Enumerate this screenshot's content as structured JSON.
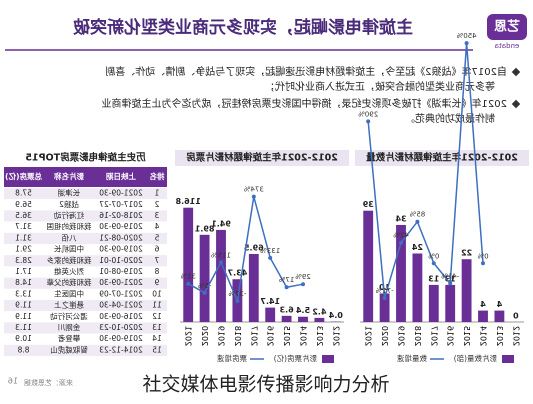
{
  "header": {
    "title": "主旋律电影崛起，实现多元商业类型化新突破",
    "logo": "艺恩",
    "logo_sub": "endata"
  },
  "bullets": [
    [
      "自2017年《战狼2》起至今，主旋律题材电影迅速崛起，实现了与战争、剧情、动作、喜剧",
      "等多元商业类型的融合突破，正式进入商业化时代；"
    ],
    [
      "2021年《长津湖》打破多项影史纪录，摘得中国影史票房榜桂冠，成为迄今为止主旋律商业",
      "制作最成功的典范。"
    ]
  ],
  "chart_data": [
    {
      "type": "bar",
      "title": "2012-2021年主旋律题材影片数量",
      "categories": [
        "2012",
        "2013",
        "2014",
        "2015",
        "2016",
        "2017",
        "2018",
        "2019",
        "2020",
        "2021"
      ],
      "ylim": [
        0,
        48
      ],
      "y2lim": [
        -120,
        160
      ],
      "series": [
        {
          "name": "影片数量(部)",
          "color": "#6a2f96",
          "values": [
            0,
            4,
            4,
            22,
            13,
            13,
            24,
            34,
            10,
            39
          ]
        },
        {
          "name": "数量增速",
          "color": "#3e6fc0",
          "axis": "y2",
          "values": [
            null,
            null,
            0,
            450,
            -41,
            0,
            85,
            42,
            -71,
            290
          ],
          "value_labels": [
            null,
            null,
            "0%",
            "450%",
            "-41%",
            "0%",
            "85%",
            "42%",
            "-71%",
            "290%"
          ]
        }
      ]
    },
    {
      "type": "bar",
      "title": "2012-2021年主旋律题材影片票房",
      "categories": [
        "2012",
        "2013",
        "2014",
        "2015",
        "2016",
        "2017",
        "2018",
        "2019",
        "2020",
        "2021"
      ],
      "ylim": [
        0,
        140
      ],
      "y2lim": [
        -120,
        420
      ],
      "series": [
        {
          "name": "影片票房(亿)",
          "color": "#6a2f96",
          "values": [
            0.4,
            4.2,
            5.4,
            6.3,
            14.7,
            69.5,
            43.7,
            94.1,
            89.1,
            116.8
          ]
        },
        {
          "name": "票房增速",
          "color": "#3e6fc0",
          "axis": "y2",
          "values": [
            null,
            null,
            29,
            17,
            133,
            374,
            -37,
            115,
            -5,
            31
          ],
          "value_labels": [
            null,
            null,
            "29%",
            "17%",
            "133%",
            "374%",
            "-37%",
            "115%",
            "-5%",
            "31%"
          ]
        }
      ]
    }
  ],
  "table": {
    "title": "历史主旋律电影票房TOP15",
    "columns": [
      "排名",
      "上映日期",
      "影片名称",
      "总票房(亿)"
    ],
    "rows": [
      [
        "1",
        "2021-09-30",
        "长津湖",
        "57.8"
      ],
      [
        "2",
        "2017-07-27",
        "战狼2",
        "56.9"
      ],
      [
        "3",
        "2018-02-16",
        "红海行动",
        "36.5"
      ],
      [
        "4",
        "2019-09-30",
        "我和我的祖国",
        "31.7"
      ],
      [
        "5",
        "2020-08-21",
        "八佰",
        "31.1"
      ],
      [
        "6",
        "2019-09-30",
        "中国机长",
        "29.1"
      ],
      [
        "7",
        "2020-10-01",
        "我和我的家乡",
        "28.3"
      ],
      [
        "8",
        "2019-08-01",
        "烈火英雄",
        "17.1"
      ],
      [
        "9",
        "2021-09-30",
        "我和我的父辈",
        "14.8"
      ],
      [
        "10",
        "2021-07-09",
        "中国医生",
        "13.3"
      ],
      [
        "11",
        "2021-04-30",
        "悬崖之上",
        "11.9"
      ],
      [
        "12",
        "2016-09-30",
        "湄公河行动",
        "11.9"
      ],
      [
        "13",
        "2020-10-23",
        "金刚川",
        "11.3"
      ],
      [
        "14",
        "2019-09-30",
        "攀登者",
        "10.9"
      ],
      [
        "15",
        "2014-12-23",
        "智取威虎山",
        "8.8"
      ]
    ]
  },
  "source": "来源：艺恩数据",
  "page_number": "16",
  "caption": "社交媒体电影传播影响力分析"
}
